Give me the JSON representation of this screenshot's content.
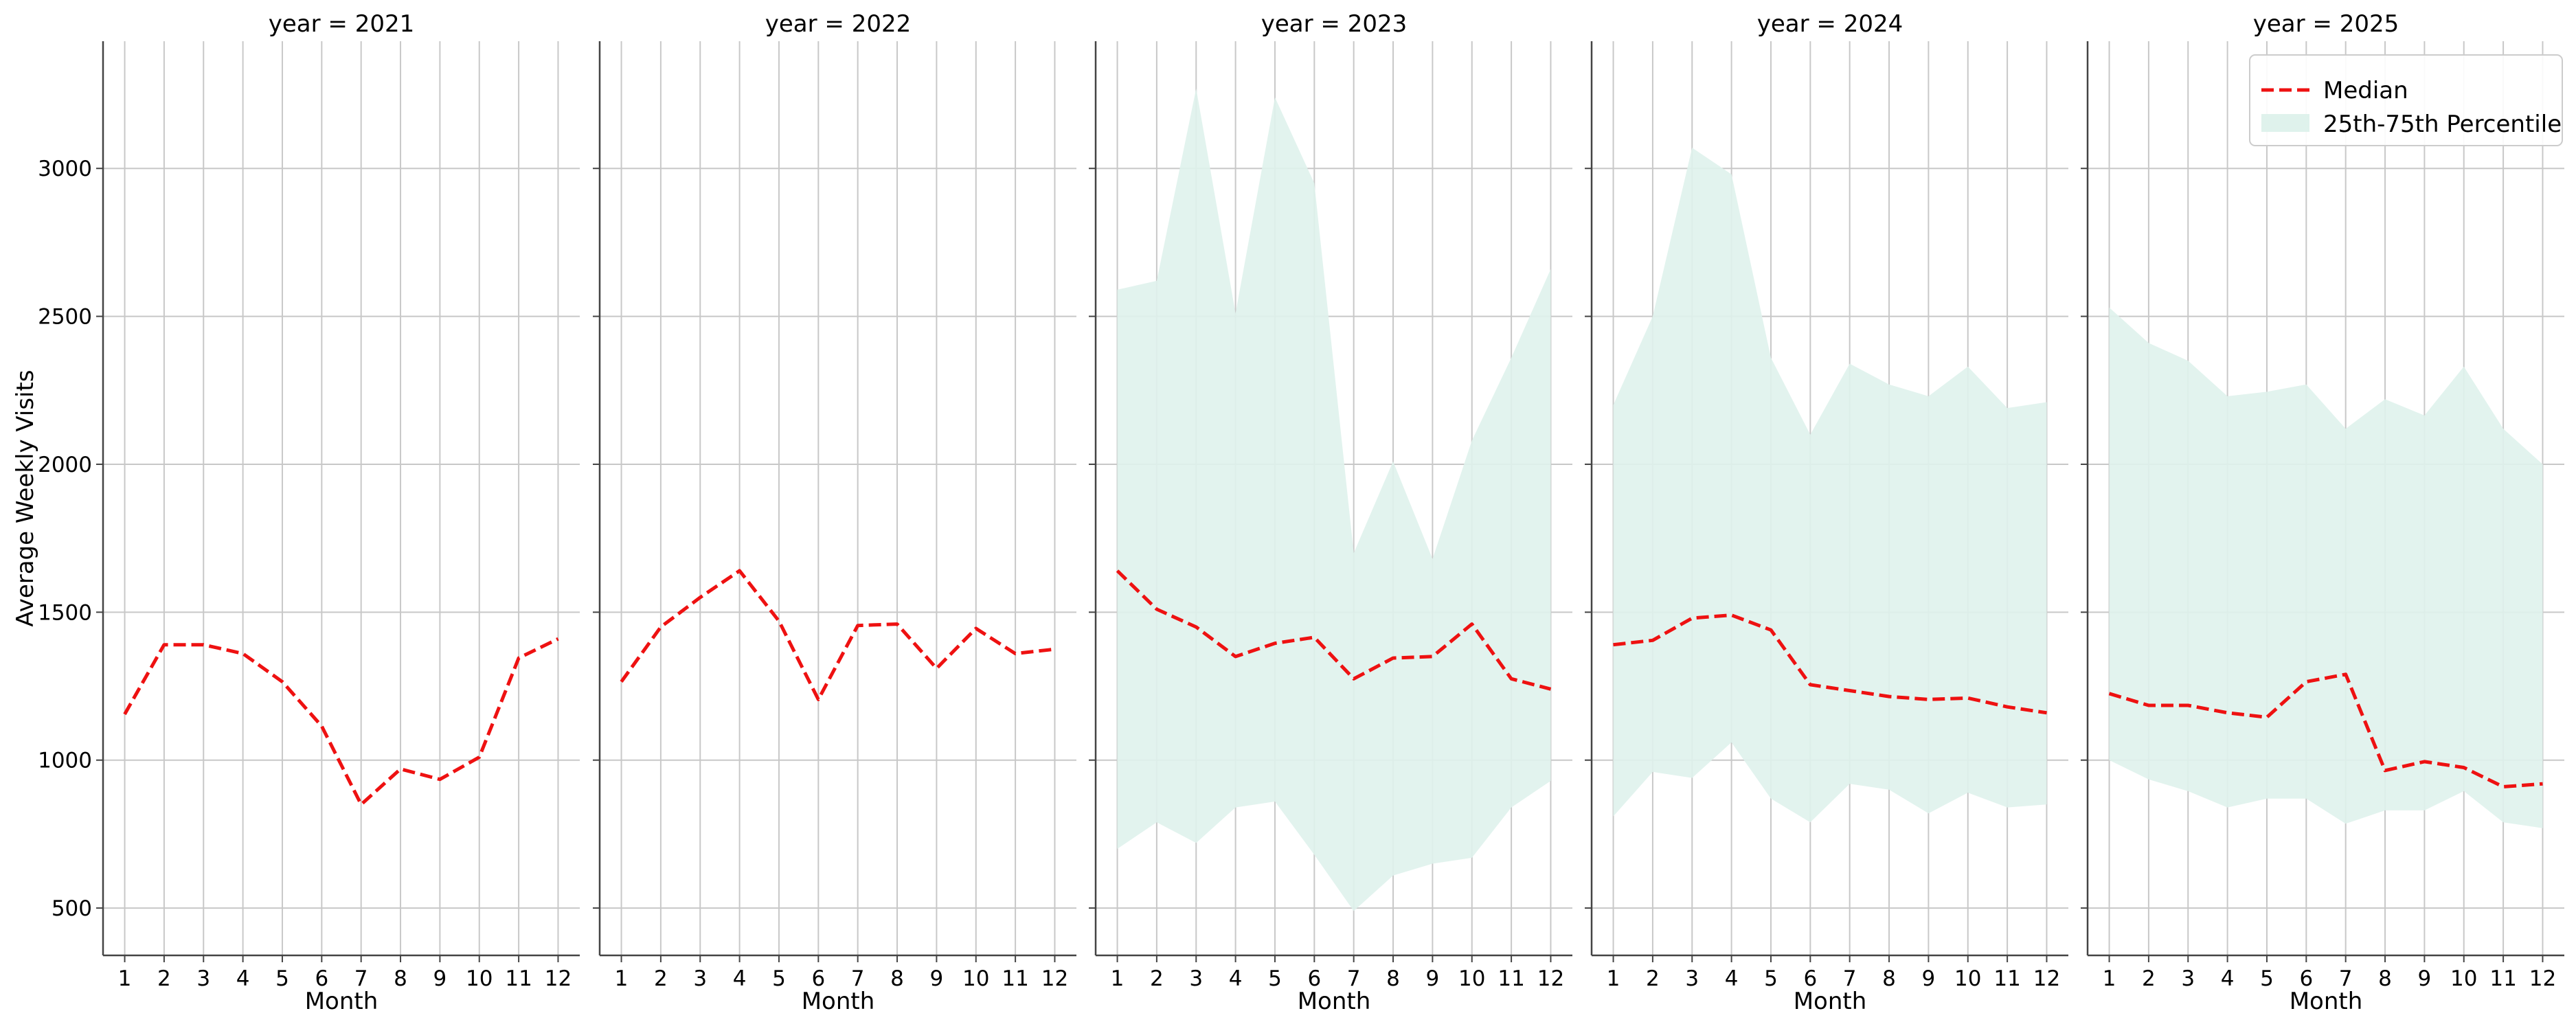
{
  "chart_data": {
    "type": "line",
    "panel_title_prefix": "year = ",
    "xlabel": "Month",
    "ylabel": "Average Weekly Visits",
    "x": [
      1,
      2,
      3,
      4,
      5,
      6,
      7,
      8,
      9,
      10,
      11,
      12
    ],
    "x_tick_labels": [
      "1",
      "2",
      "3",
      "4",
      "5",
      "6",
      "7",
      "8",
      "9",
      "10",
      "11",
      "12"
    ],
    "xlim": [
      0.45,
      12.55
    ],
    "ylim": [
      340,
      3430
    ],
    "y_ticks": [
      500,
      1000,
      1500,
      2000,
      2500,
      3000
    ],
    "grid": true,
    "legend": {
      "placement": "top-right",
      "entries": [
        "Median",
        "25th-75th Percentile"
      ]
    },
    "colors": {
      "median": "#ee1111",
      "band": "#dff2ec",
      "grid": "#c8c8c8",
      "axis": "#444444"
    },
    "panels": [
      {
        "year": "2021",
        "median": [
          1155,
          1390,
          1390,
          1360,
          1265,
          1115,
          850,
          970,
          935,
          1010,
          1345,
          1410
        ],
        "p25": null,
        "p75": null
      },
      {
        "year": "2022",
        "median": [
          1265,
          1450,
          1550,
          1640,
          1470,
          1205,
          1455,
          1460,
          1310,
          1445,
          1360,
          1375
        ],
        "p25": null,
        "p75": null
      },
      {
        "year": "2023",
        "median": [
          1640,
          1510,
          1450,
          1350,
          1395,
          1415,
          1275,
          1345,
          1350,
          1460,
          1275,
          1240
        ],
        "p25": [
          700,
          790,
          720,
          840,
          860,
          680,
          490,
          610,
          650,
          670,
          840,
          930
        ],
        "p75": [
          2590,
          2620,
          3270,
          2510,
          3240,
          2950,
          1700,
          2010,
          1680,
          2080,
          2360,
          2660
        ]
      },
      {
        "year": "2024",
        "median": [
          1390,
          1405,
          1480,
          1490,
          1440,
          1255,
          1235,
          1215,
          1205,
          1210,
          1180,
          1160
        ],
        "p25": [
          810,
          960,
          940,
          1060,
          870,
          790,
          920,
          900,
          820,
          890,
          840,
          850
        ],
        "p75": [
          2200,
          2500,
          3070,
          2980,
          2360,
          2100,
          2340,
          2270,
          2230,
          2330,
          2190,
          2210
        ]
      },
      {
        "year": "2025",
        "median": [
          1225,
          1185,
          1185,
          1160,
          1145,
          1265,
          1290,
          965,
          995,
          975,
          910,
          920
        ],
        "p25": [
          1000,
          935,
          895,
          840,
          870,
          870,
          785,
          830,
          830,
          895,
          790,
          770
        ],
        "p75": [
          2530,
          2410,
          2350,
          2230,
          2245,
          2270,
          2120,
          2220,
          2165,
          2330,
          2120,
          2000
        ]
      }
    ]
  }
}
